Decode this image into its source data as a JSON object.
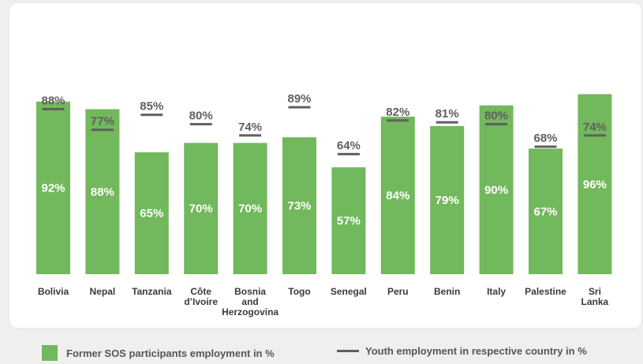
{
  "chart_data": {
    "type": "bar",
    "categories": [
      "Bolivia",
      "Nepal",
      "Tanzania",
      "Côte d’Ivoire",
      "Bosnia and Herzogovina",
      "Togo",
      "Senegal",
      "Peru",
      "Benin",
      "Italy",
      "Palestine",
      "Sri Lanka"
    ],
    "category_lines": [
      [
        "Bolivia"
      ],
      [
        "Nepal"
      ],
      [
        "Tanzania"
      ],
      [
        "Côte",
        "d’Ivoire"
      ],
      [
        "Bosnia",
        "and",
        "Herzogovina"
      ],
      [
        "Togo"
      ],
      [
        "Senegal"
      ],
      [
        "Peru"
      ],
      [
        "Benin"
      ],
      [
        "Italy"
      ],
      [
        "Palestine"
      ],
      [
        "Sri",
        "Lanka"
      ]
    ],
    "series": [
      {
        "name": "Former SOS participants employment in %",
        "values": [
          92,
          88,
          65,
          70,
          70,
          73,
          57,
          84,
          79,
          90,
          67,
          96
        ],
        "labels": [
          "92%",
          "88%",
          "65%",
          "70%",
          "70%",
          "73%",
          "57%",
          "84%",
          "79%",
          "90%",
          "67%",
          "96%"
        ],
        "mark": "bar",
        "color": "#72b85c"
      },
      {
        "name": "Youth employment in respective country in %",
        "values": [
          88,
          77,
          85,
          80,
          74,
          89,
          64,
          82,
          81,
          80,
          68,
          74
        ],
        "labels": [
          "88%",
          "77%",
          "85%",
          "80%",
          "74%",
          "89%",
          "64%",
          "82%",
          "81%",
          "80%",
          "68%",
          "74%"
        ],
        "mark": "line-marker",
        "color": "#5f5f5f"
      }
    ],
    "ylim": [
      0,
      100
    ],
    "grid": false,
    "legend_position": "bottom"
  },
  "legend": {
    "bar_label": "Former SOS participants employment in %",
    "line_label": "Youth employment in respective country in %"
  }
}
